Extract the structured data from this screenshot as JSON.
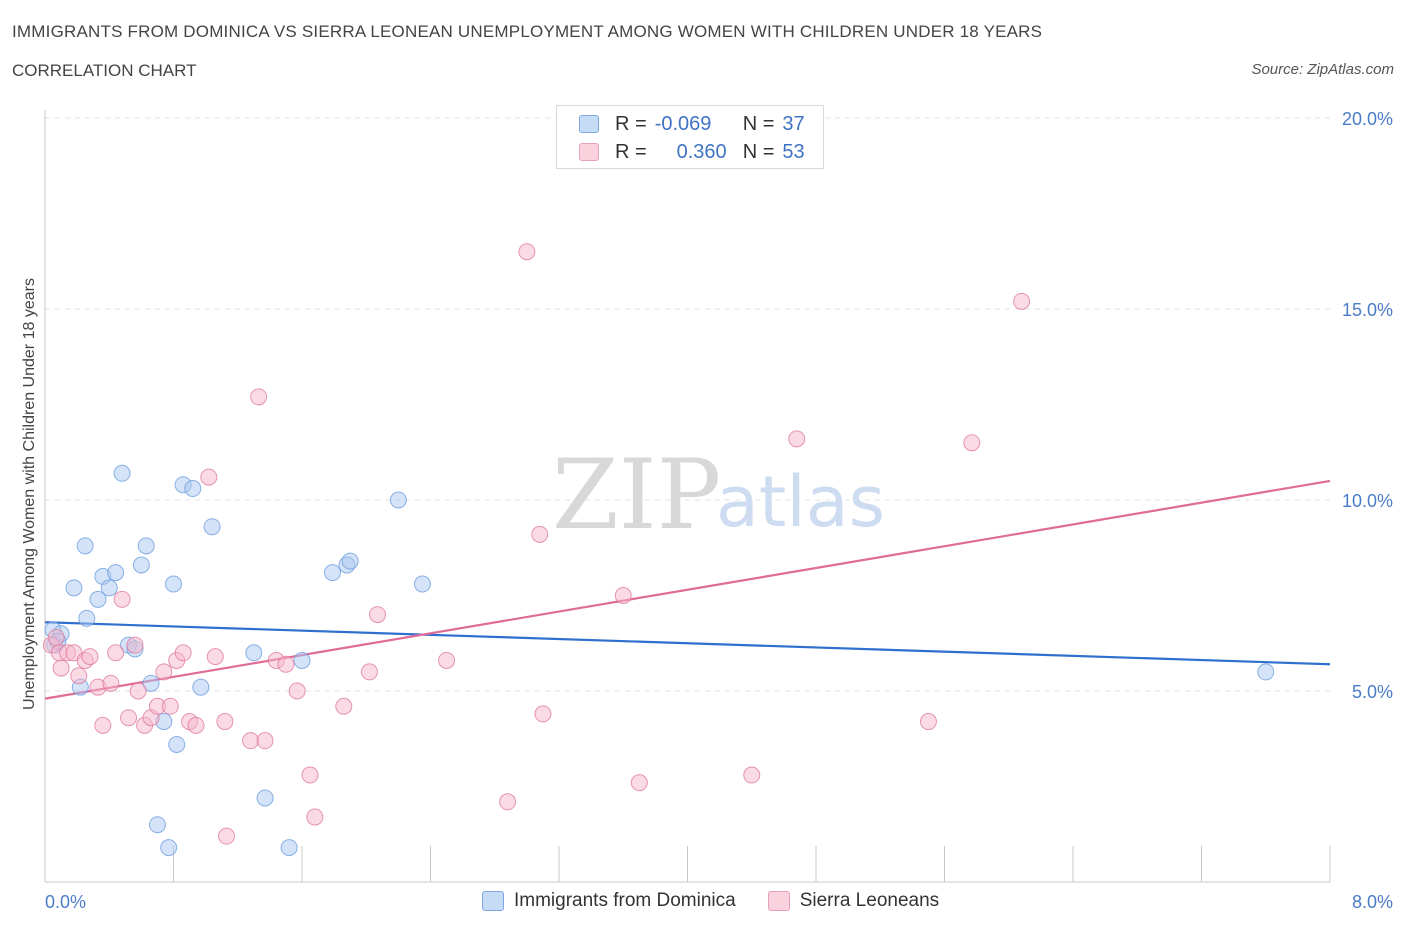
{
  "header": {
    "title": "IMMIGRANTS FROM DOMINICA VS SIERRA LEONEAN UNEMPLOYMENT AMONG WOMEN WITH CHILDREN UNDER 18 YEARS",
    "subtitle": "CORRELATION CHART",
    "source": "Source: ZipAtlas.com"
  },
  "watermark": {
    "zip": "ZIP",
    "atlas": "atlas"
  },
  "legend": {
    "rows": [
      {
        "r_label": "R =",
        "r_value": "-0.069",
        "n_label": "N =",
        "n_value": "37",
        "color": "#a9c8f0"
      },
      {
        "r_label": "R =",
        "r_value": "0.360",
        "n_label": "N =",
        "n_value": "53",
        "color": "#f5b8cb"
      }
    ]
  },
  "bottom_legend": {
    "items": [
      {
        "label": "Immigrants from Dominica",
        "color": "#a9c8f0"
      },
      {
        "label": "Sierra Leoneans",
        "color": "#f5b8cb"
      }
    ]
  },
  "chart_data": {
    "type": "scatter",
    "title": "IMMIGRANTS FROM DOMINICA VS SIERRA LEONEAN UNEMPLOYMENT AMONG WOMEN WITH CHILDREN UNDER 18 YEARS",
    "xlabel": "",
    "ylabel": "Unemployment Among Women with Children Under 18 years",
    "xlim": [
      0,
      8
    ],
    "ylim": [
      0,
      20
    ],
    "x_tick_labels": [
      "0.0%",
      "8.0%"
    ],
    "y_ticks": [
      5,
      10,
      15,
      20
    ],
    "y_tick_labels": [
      "5.0%",
      "10.0%",
      "15.0%",
      "20.0%"
    ],
    "grid": true,
    "series": [
      {
        "name": "Immigrants from Dominica",
        "color": "#6f9fe0",
        "fill": "#a9c8f0",
        "trend": {
          "x": [
            0,
            8
          ],
          "y": [
            6.8,
            5.7
          ]
        },
        "points": [
          [
            0.05,
            6.6
          ],
          [
            0.1,
            6.5
          ],
          [
            0.06,
            6.2
          ],
          [
            0.08,
            6.3
          ],
          [
            0.18,
            7.7
          ],
          [
            0.25,
            8.8
          ],
          [
            0.26,
            6.9
          ],
          [
            0.22,
            5.1
          ],
          [
            0.33,
            7.4
          ],
          [
            0.36,
            8.0
          ],
          [
            0.4,
            7.7
          ],
          [
            0.44,
            8.1
          ],
          [
            0.48,
            10.7
          ],
          [
            0.52,
            6.2
          ],
          [
            0.56,
            6.1
          ],
          [
            0.6,
            8.3
          ],
          [
            0.63,
            8.8
          ],
          [
            0.66,
            5.2
          ],
          [
            0.7,
            1.5
          ],
          [
            0.74,
            4.2
          ],
          [
            0.77,
            0.9
          ],
          [
            0.8,
            7.8
          ],
          [
            0.82,
            3.6
          ],
          [
            0.86,
            10.4
          ],
          [
            0.92,
            10.3
          ],
          [
            0.97,
            5.1
          ],
          [
            1.04,
            9.3
          ],
          [
            1.3,
            6.0
          ],
          [
            1.37,
            2.2
          ],
          [
            1.52,
            0.9
          ],
          [
            1.6,
            5.8
          ],
          [
            1.79,
            8.1
          ],
          [
            1.88,
            8.3
          ],
          [
            1.9,
            8.4
          ],
          [
            2.2,
            10.0
          ],
          [
            2.35,
            7.8
          ],
          [
            7.6,
            5.5
          ]
        ]
      },
      {
        "name": "Sierra Leoneans",
        "color": "#e07aa0",
        "fill": "#f5b8cb",
        "trend": {
          "x": [
            0,
            8
          ],
          "y": [
            4.8,
            10.5
          ]
        },
        "points": [
          [
            0.04,
            6.2
          ],
          [
            0.07,
            6.4
          ],
          [
            0.09,
            6.0
          ],
          [
            0.1,
            5.6
          ],
          [
            0.14,
            6.0
          ],
          [
            0.18,
            6.0
          ],
          [
            0.21,
            5.4
          ],
          [
            0.25,
            5.8
          ],
          [
            0.28,
            5.9
          ],
          [
            0.33,
            5.1
          ],
          [
            0.36,
            4.1
          ],
          [
            0.41,
            5.2
          ],
          [
            0.44,
            6.0
          ],
          [
            0.48,
            7.4
          ],
          [
            0.52,
            4.3
          ],
          [
            0.56,
            6.2
          ],
          [
            0.58,
            5.0
          ],
          [
            0.62,
            4.1
          ],
          [
            0.66,
            4.3
          ],
          [
            0.7,
            4.6
          ],
          [
            0.74,
            5.5
          ],
          [
            0.78,
            4.6
          ],
          [
            0.82,
            5.8
          ],
          [
            0.86,
            6.0
          ],
          [
            0.9,
            4.2
          ],
          [
            0.94,
            4.1
          ],
          [
            1.02,
            10.6
          ],
          [
            1.06,
            5.9
          ],
          [
            1.12,
            4.2
          ],
          [
            1.13,
            1.2
          ],
          [
            1.28,
            3.7
          ],
          [
            1.33,
            12.7
          ],
          [
            1.37,
            3.7
          ],
          [
            1.44,
            5.8
          ],
          [
            1.5,
            5.7
          ],
          [
            1.57,
            5.0
          ],
          [
            1.65,
            2.8
          ],
          [
            1.68,
            1.7
          ],
          [
            1.86,
            4.6
          ],
          [
            2.02,
            5.5
          ],
          [
            2.07,
            7.0
          ],
          [
            2.5,
            5.8
          ],
          [
            2.88,
            2.1
          ],
          [
            3.0,
            16.5
          ],
          [
            3.08,
            9.1
          ],
          [
            3.1,
            4.4
          ],
          [
            3.6,
            7.5
          ],
          [
            3.7,
            2.6
          ],
          [
            4.4,
            2.8
          ],
          [
            4.68,
            11.6
          ],
          [
            5.5,
            4.2
          ],
          [
            5.77,
            11.5
          ],
          [
            6.08,
            15.2
          ]
        ]
      }
    ],
    "stats": [
      {
        "series": "Immigrants from Dominica",
        "R": -0.069,
        "N": 37
      },
      {
        "series": "Sierra Leoneans",
        "R": 0.36,
        "N": 53
      }
    ]
  }
}
